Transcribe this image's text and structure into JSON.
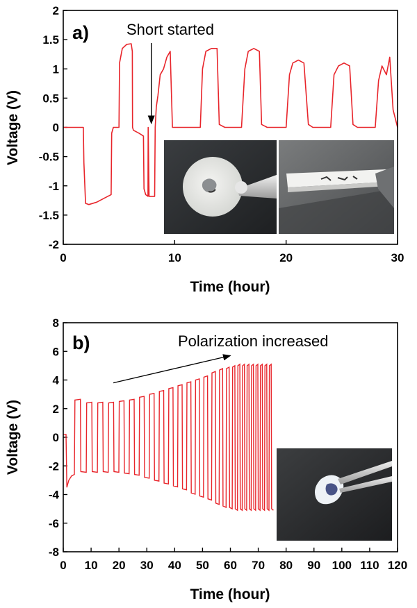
{
  "chart_data": [
    {
      "type": "line",
      "panel_label": "a)",
      "xlabel": "Time (hour)",
      "ylabel": "Voltage (V)",
      "xlim": [
        0,
        30
      ],
      "ylim": [
        -2,
        2
      ],
      "xticks": [
        0,
        10,
        20,
        30
      ],
      "yticks": [
        -2,
        -1.5,
        -1,
        -0.5,
        0,
        0.5,
        1,
        1.5,
        2
      ],
      "color": "#e8252b",
      "annotation": {
        "text": "Short started",
        "arrow_to": [
          7.9,
          0.02
        ]
      },
      "insets": [
        "photo-disk-on-tweezers",
        "photo-pellet-side-view"
      ],
      "series": [
        {
          "x": [
            0,
            1.8,
            1.85,
            2.0,
            2.3,
            3,
            3.8,
            4.3,
            4.35,
            4.5,
            4.8,
            5.0,
            5.05,
            5.3,
            5.7,
            6.1,
            6.2,
            6.22,
            6.3,
            6.8,
            7.2,
            7.25,
            7.4,
            7.6,
            7.62,
            7.7,
            8.2,
            8.25,
            8.35,
            8.5,
            8.7,
            9,
            9.3,
            9.6,
            9.8,
            10,
            10.3,
            10.6,
            11,
            12.3,
            12.5,
            12.8,
            13.3,
            13.8,
            14,
            14.5,
            16,
            16.3,
            16.6,
            17.1,
            17.6,
            17.8,
            18.3,
            20,
            20.3,
            20.6,
            21.1,
            21.6,
            22,
            22.4,
            24,
            24.3,
            24.7,
            25.2,
            25.7,
            26,
            26.4,
            28,
            28.3,
            28.6,
            29,
            29.3,
            29.6,
            30
          ],
          "y": [
            0,
            0,
            -0.6,
            -1.3,
            -1.32,
            -1.28,
            -1.2,
            -1.15,
            -0.1,
            0,
            0,
            0,
            1.1,
            1.35,
            1.42,
            1.43,
            1.3,
            0,
            -0.05,
            -0.1,
            -0.15,
            -1.05,
            -1.15,
            -1.18,
            0,
            -1.18,
            -1.18,
            0,
            0.35,
            0.55,
            0.9,
            1.0,
            1.2,
            1.3,
            0.0,
            0.0,
            0.0,
            0.0,
            0.0,
            0.0,
            1.0,
            1.3,
            1.35,
            1.35,
            0.05,
            0.0,
            0.0,
            1.0,
            1.3,
            1.35,
            1.3,
            0.05,
            0.0,
            0.0,
            0.9,
            1.1,
            1.15,
            1.1,
            0.05,
            0.0,
            0.0,
            0.9,
            1.05,
            1.1,
            1.05,
            0.05,
            0.0,
            0.0,
            0.8,
            1.05,
            0.9,
            1.2,
            0.3,
            0.0
          ]
        }
      ]
    },
    {
      "type": "line",
      "panel_label": "b)",
      "xlabel": "Time (hour)",
      "ylabel": "Voltage (V)",
      "xlim": [
        0,
        120
      ],
      "ylim": [
        -8,
        8
      ],
      "xticks": [
        0,
        10,
        20,
        30,
        40,
        50,
        60,
        70,
        80,
        90,
        100,
        110,
        120
      ],
      "yticks": [
        -8,
        -6,
        -4,
        -2,
        0,
        2,
        4,
        6,
        8
      ],
      "color": "#e8252b",
      "annotation": {
        "text": "Polarization increased",
        "arrow_from": [
          18,
          3.8
        ],
        "arrow_to": [
          60,
          5.7
        ]
      },
      "insets": [
        "photo-membrane-fragment-on-tweezers"
      ],
      "cycling": {
        "initial": {
          "x": [
            0,
            1,
            1.3,
            2,
            3,
            4,
            4.2
          ],
          "y": [
            0.2,
            0.2,
            -3.5,
            -3.0,
            -2.7,
            -2.6,
            2.5
          ]
        },
        "cycles": [
          {
            "t": 4.2,
            "up": 2.6,
            "down": 2.4
          },
          {
            "t": 8.4,
            "up": 2.4,
            "down": 2.4
          },
          {
            "t": 12.4,
            "up": 2.4,
            "down": 2.4
          },
          {
            "t": 16.3,
            "up": 2.4,
            "down": 2.4
          },
          {
            "t": 20.1,
            "up": 2.5,
            "down": 2.5
          },
          {
            "t": 23.8,
            "up": 2.6,
            "down": 2.6
          },
          {
            "t": 27.4,
            "up": 2.8,
            "down": 2.8
          },
          {
            "t": 31.0,
            "up": 3.0,
            "down": 3.0
          },
          {
            "t": 34.5,
            "up": 3.2,
            "down": 3.2
          },
          {
            "t": 37.9,
            "up": 3.4,
            "down": 3.4
          },
          {
            "t": 41.2,
            "up": 3.6,
            "down": 3.6
          },
          {
            "t": 44.4,
            "up": 3.8,
            "down": 3.9
          },
          {
            "t": 47.5,
            "up": 4.0,
            "down": 4.1
          },
          {
            "t": 50.5,
            "up": 4.2,
            "down": 4.3
          },
          {
            "t": 53.4,
            "up": 4.5,
            "down": 4.6
          },
          {
            "t": 56.1,
            "up": 4.7,
            "down": 4.8
          },
          {
            "t": 58.6,
            "up": 4.8,
            "down": 4.9
          },
          {
            "t": 60.8,
            "up": 4.9,
            "down": 5.0
          },
          {
            "t": 62.7,
            "up": 5.0,
            "down": 5.0
          },
          {
            "t": 64.4,
            "up": 5.0,
            "down": 5.0
          },
          {
            "t": 66.0,
            "up": 5.0,
            "down": 5.0
          },
          {
            "t": 67.6,
            "up": 5.0,
            "down": 5.0
          },
          {
            "t": 69.2,
            "up": 5.0,
            "down": 5.0
          },
          {
            "t": 70.8,
            "up": 5.0,
            "down": 5.0
          },
          {
            "t": 72.4,
            "up": 5.0,
            "down": 5.0
          },
          {
            "t": 74.0,
            "up": 5.0,
            "down": 5.0
          }
        ],
        "end": 75.6
      }
    }
  ]
}
